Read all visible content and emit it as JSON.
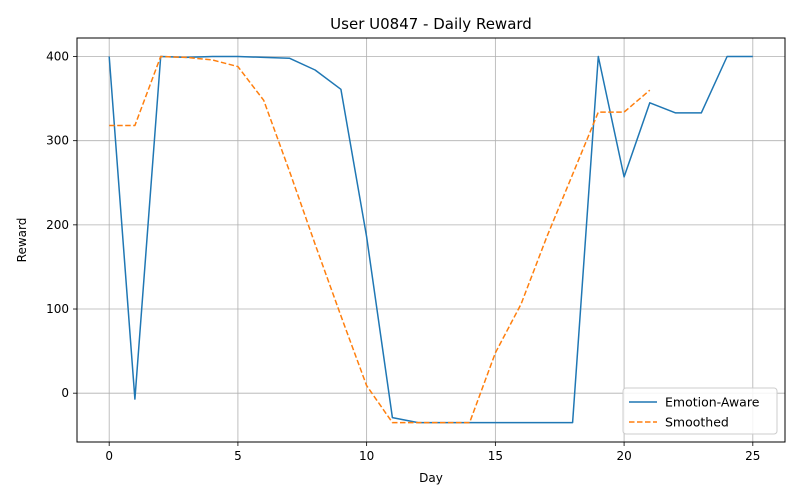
{
  "chart_data": {
    "type": "line",
    "title": "User U0847 - Daily Reward",
    "xlabel": "Day",
    "ylabel": "Reward",
    "xlim": [
      -1.25,
      26.25
    ],
    "ylim": [
      -58,
      422
    ],
    "xticks": [
      0,
      5,
      10,
      15,
      20,
      25
    ],
    "yticks": [
      0,
      100,
      200,
      300,
      400
    ],
    "grid": true,
    "legend_position": "lower right",
    "series": [
      {
        "name": "Emotion-Aware",
        "color": "#1f77b4",
        "style": "solid",
        "x": [
          0,
          1,
          2,
          3,
          4,
          5,
          6,
          7,
          8,
          9,
          10,
          11,
          12,
          13,
          14,
          15,
          16,
          17,
          18,
          19,
          20,
          21,
          22,
          23,
          24,
          25
        ],
        "y": [
          400,
          -7,
          400,
          399,
          400,
          400,
          399,
          398,
          384,
          361,
          186,
          -29,
          -35,
          -35,
          -35,
          -35,
          -35,
          -35,
          -35,
          400,
          257,
          345,
          333,
          333,
          400,
          400
        ]
      },
      {
        "name": "Smoothed",
        "color": "#ff7f0e",
        "style": "dashed",
        "x": [
          0,
          1,
          2,
          3,
          4,
          5,
          6,
          7,
          8,
          9,
          10,
          11,
          12,
          13,
          14,
          15,
          16,
          17,
          18,
          19,
          20,
          21
        ],
        "y": [
          318,
          318,
          400,
          399,
          396,
          388,
          348,
          264,
          177,
          92,
          9,
          -35,
          -35,
          -35,
          -35,
          48,
          106,
          186,
          260,
          334,
          334,
          360
        ]
      }
    ]
  }
}
